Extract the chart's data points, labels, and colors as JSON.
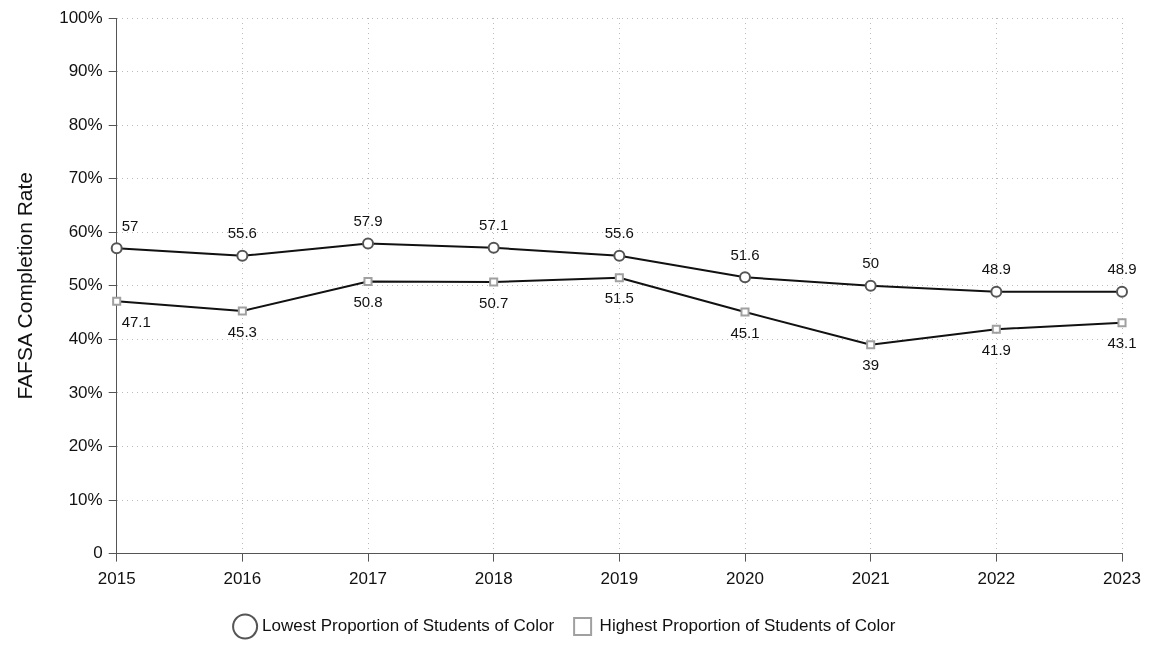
{
  "chart_data": {
    "type": "line",
    "ylabel": "FAFSA Completion Rate",
    "x": [
      2015,
      2016,
      2017,
      2018,
      2019,
      2020,
      2021,
      2022,
      2023
    ],
    "series": [
      {
        "name": "Lowest Proportion of Students of Color",
        "color": "#555555",
        "marker": "circle",
        "values": [
          57,
          55.6,
          57.9,
          57.1,
          55.6,
          51.6,
          50,
          48.9,
          48.9
        ]
      },
      {
        "name": "Highest Proportion of Students of Color",
        "color": "#a0a0a0",
        "marker": "square",
        "values": [
          47.1,
          45.3,
          50.8,
          50.7,
          51.5,
          45.1,
          39,
          41.9,
          43.1
        ]
      }
    ],
    "xlim": [
      2015,
      2023
    ],
    "xticks": [
      2015,
      2016,
      2017,
      2018,
      2019,
      2020,
      2021,
      2022,
      2023
    ],
    "ylim": [
      0,
      100
    ],
    "yticks": [
      {
        "value": 0,
        "label": "0"
      },
      {
        "value": 10,
        "label": "10%"
      },
      {
        "value": 20,
        "label": "20%"
      },
      {
        "value": 30,
        "label": "30%"
      },
      {
        "value": 40,
        "label": "40%"
      },
      {
        "value": 50,
        "label": "50%"
      },
      {
        "value": 60,
        "label": "60%"
      },
      {
        "value": 70,
        "label": "70%"
      },
      {
        "value": 80,
        "label": "80%"
      },
      {
        "value": 90,
        "label": "90%"
      },
      {
        "value": 100,
        "label": "100%"
      }
    ],
    "grid": true,
    "legend": "bottom",
    "line_style": "solid",
    "data_labels": true
  }
}
